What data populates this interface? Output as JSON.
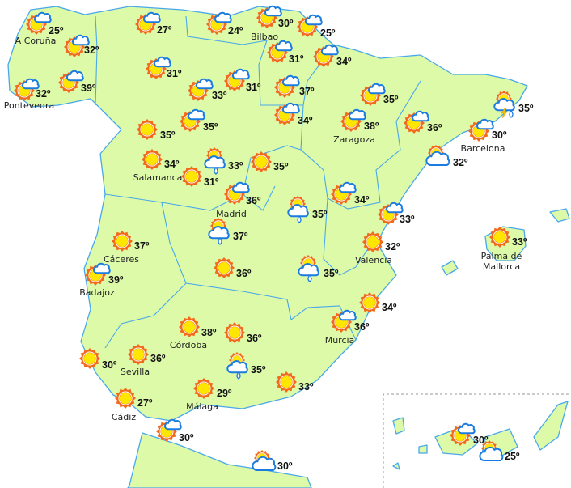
{
  "map": {
    "colors": {
      "land": "#dcfaa8",
      "border": "#4aa8ea",
      "sun_rays": "#f26b1d",
      "sun_core": "#ffe600",
      "cloud_outline": "#1a7be0"
    },
    "degree_symbol": "º"
  },
  "stations": [
    {
      "name": "A Coruña",
      "temp": "25º",
      "icon": "sun-cloud-icon"
    },
    {
      "name": "",
      "temp": "32º",
      "icon": "sun-cloud-icon"
    },
    {
      "name": "Pontevedra",
      "temp": "32º",
      "icon": "sun-cloud-icon"
    },
    {
      "name": "",
      "temp": "39º",
      "icon": "sun-cloud-icon"
    },
    {
      "name": "",
      "temp": "27º",
      "icon": "sun-cloud-icon"
    },
    {
      "name": "",
      "temp": "24º",
      "icon": "sun-cloud-icon"
    },
    {
      "name": "Bilbao",
      "temp": "30º",
      "icon": "sun-cloud-icon"
    },
    {
      "name": "",
      "temp": "25º",
      "icon": "sun-cloud-icon"
    },
    {
      "name": "",
      "temp": "31º",
      "icon": "sun-cloud-icon"
    },
    {
      "name": "",
      "temp": "31º",
      "icon": "sun-cloud-icon"
    },
    {
      "name": "",
      "temp": "34º",
      "icon": "sun-cloud-icon"
    },
    {
      "name": "",
      "temp": "33º",
      "icon": "sun-cloud-icon"
    },
    {
      "name": "",
      "temp": "31º",
      "icon": "sun-cloud-icon"
    },
    {
      "name": "",
      "temp": "37º",
      "icon": "sun-cloud-icon"
    },
    {
      "name": "",
      "temp": "34º",
      "icon": "sun-cloud-icon"
    },
    {
      "name": "",
      "temp": "35º",
      "icon": "sun-cloud-icon"
    },
    {
      "name": "Zaragoza",
      "temp": "38º",
      "icon": "sun-cloud-icon"
    },
    {
      "name": "",
      "temp": "36º",
      "icon": "sun-cloud-icon"
    },
    {
      "name": "",
      "temp": "35º",
      "icon": "storm-icon"
    },
    {
      "name": "Barcelona",
      "temp": "30º",
      "icon": "sun-cloud-icon"
    },
    {
      "name": "",
      "temp": "32º",
      "icon": "cloudy-icon"
    },
    {
      "name": "",
      "temp": "35º",
      "icon": "sun-icon"
    },
    {
      "name": "",
      "temp": "35º",
      "icon": "sun-cloud-icon"
    },
    {
      "name": "Salamanca",
      "temp": "34º",
      "icon": "sun-icon"
    },
    {
      "name": "",
      "temp": "31º",
      "icon": "sun-icon"
    },
    {
      "name": "",
      "temp": "33º",
      "icon": "rain-icon"
    },
    {
      "name": "",
      "temp": "35º",
      "icon": "sun-icon"
    },
    {
      "name": "Madrid",
      "temp": "36º",
      "icon": "sun-cloud-icon"
    },
    {
      "name": "",
      "temp": "34º",
      "icon": "sun-cloud-icon"
    },
    {
      "name": "",
      "temp": "35º",
      "icon": "rain-icon"
    },
    {
      "name": "",
      "temp": "33º",
      "icon": "sun-cloud-icon"
    },
    {
      "name": "",
      "temp": "37º",
      "icon": "rain-icon"
    },
    {
      "name": "Cáceres",
      "temp": "37º",
      "icon": "sun-icon"
    },
    {
      "name": "Badajoz",
      "temp": "39º",
      "icon": "sun-cloud-icon"
    },
    {
      "name": "",
      "temp": "36º",
      "icon": "sun-icon"
    },
    {
      "name": "",
      "temp": "35º",
      "icon": "rain-icon"
    },
    {
      "name": "Valencia",
      "temp": "32º",
      "icon": "sun-icon"
    },
    {
      "name": "",
      "temp": "34º",
      "icon": "sun-icon"
    },
    {
      "name": "Murcia",
      "temp": "36º",
      "icon": "sun-cloud-icon"
    },
    {
      "name": "Córdoba",
      "temp": "38º",
      "icon": "sun-icon"
    },
    {
      "name": "",
      "temp": "36º",
      "icon": "sun-icon"
    },
    {
      "name": "",
      "temp": "30º",
      "icon": "sun-icon"
    },
    {
      "name": "Sevilla",
      "temp": "36º",
      "icon": "sun-icon"
    },
    {
      "name": "",
      "temp": "35º",
      "icon": "rain-icon"
    },
    {
      "name": "",
      "temp": "33º",
      "icon": "sun-icon"
    },
    {
      "name": "Málaga",
      "temp": "29º",
      "icon": "sun-icon"
    },
    {
      "name": "Cádiz",
      "temp": "27º",
      "icon": "sun-icon"
    },
    {
      "name": "",
      "temp": "30º",
      "icon": "sun-cloud-icon"
    },
    {
      "name": "",
      "temp": "30º",
      "icon": "cloudy-icon"
    },
    {
      "name": "Palma de|Mallorca",
      "temp": "33º",
      "icon": "sun-icon"
    },
    {
      "name": "",
      "temp": "30º",
      "icon": "sun-cloud-icon"
    },
    {
      "name": "",
      "temp": "25º",
      "icon": "cloudy-icon"
    }
  ]
}
